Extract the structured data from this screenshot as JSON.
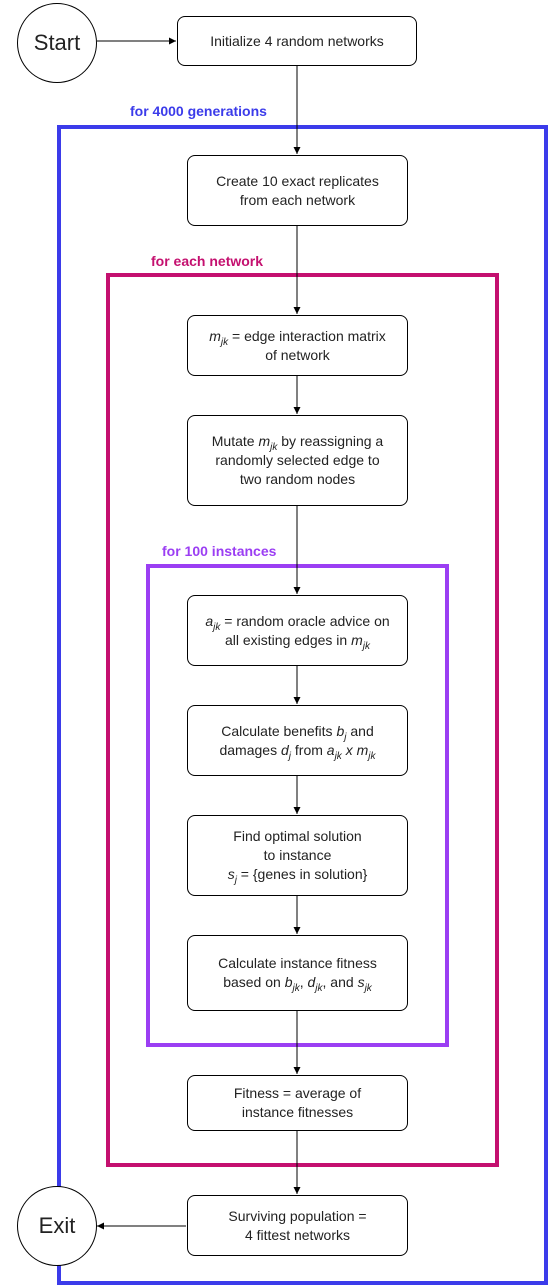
{
  "terminals": {
    "start": "Start",
    "exit": "Exit"
  },
  "loops": {
    "outer": "for 4000 generations",
    "middle": "for each network",
    "inner": "for 100 instances"
  },
  "steps": {
    "init": "Initialize 4 random networks",
    "replicate": [
      "Create 10 exact replicates",
      "from each network"
    ],
    "matrix": {
      "var": "m",
      "sub": "jk",
      "rest": " = edge interaction matrix",
      "line2": "of network"
    },
    "mutate": {
      "pre": "Mutate ",
      "var": "m",
      "sub": "jk",
      "post": " by reassigning a",
      "line2": "randomly selected edge to",
      "line3": "two random nodes"
    },
    "advice": {
      "var": "a",
      "sub": "jk",
      "rest": " = random oracle advice on",
      "line2_pre": "all existing edges in ",
      "line2_var": "m",
      "line2_sub": "jk"
    },
    "benefits": {
      "pre": "Calculate benefits ",
      "var": "b",
      "sub": "j",
      "post": " and",
      "line2_pre": "damages ",
      "line2_var": "d",
      "line2_sub": "j",
      "line2_mid": " from ",
      "line2_var2": "a",
      "line2_sub2": "jk",
      "line2_x": " x ",
      "line2_var3": "m",
      "line2_sub3": "jk"
    },
    "optimal": {
      "line1": "Find optimal solution",
      "line2": "to instance",
      "var": "s",
      "sub": "j",
      "rest": " = {genes in solution}"
    },
    "instance_fitness": {
      "line1": "Calculate instance fitness",
      "pre": "based on ",
      "var1": "b",
      "sub1": "jk",
      "sep1": ", ",
      "var2": "d",
      "sub2": "jk",
      "sep2": ", and ",
      "var3": "s",
      "sub3": "jk"
    },
    "fitness": [
      "Fitness = average of",
      "instance fitnesses"
    ],
    "surviving": [
      "Surviving population =",
      "4 fittest networks"
    ]
  },
  "colors": {
    "outer_loop": "#3b3bea",
    "middle_loop": "#c4106f",
    "inner_loop": "#9b3ef3"
  }
}
